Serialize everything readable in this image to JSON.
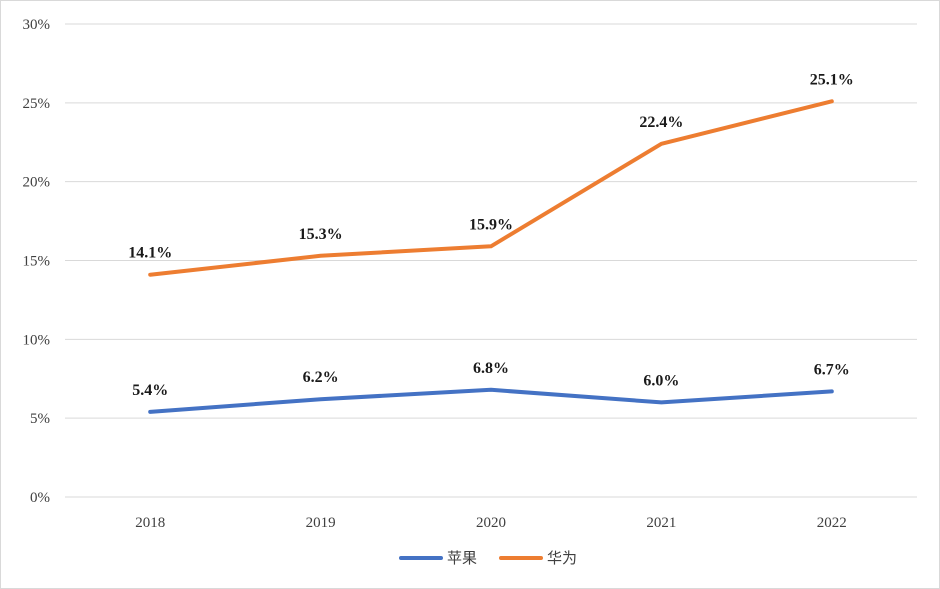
{
  "chart_data": {
    "type": "line",
    "title": "",
    "xlabel": "",
    "ylabel": "",
    "categories": [
      "2018",
      "2019",
      "2020",
      "2021",
      "2022"
    ],
    "ylim": [
      0,
      30
    ],
    "y_ticks": [
      "0%",
      "5%",
      "10%",
      "15%",
      "20%",
      "25%",
      "30%"
    ],
    "grid": true,
    "legend_position": "bottom",
    "series": [
      {
        "name": "苹果",
        "color": "#4472c4",
        "values": [
          5.4,
          6.2,
          6.8,
          6.0,
          6.7
        ],
        "labels": [
          "5.4%",
          "6.2%",
          "6.8%",
          "6.0%",
          "6.7%"
        ]
      },
      {
        "name": "华为",
        "color": "#ed7d31",
        "values": [
          14.1,
          15.3,
          15.9,
          22.4,
          25.1
        ],
        "labels": [
          "14.1%",
          "15.3%",
          "15.9%",
          "22.4%",
          "25.1%"
        ]
      }
    ]
  }
}
